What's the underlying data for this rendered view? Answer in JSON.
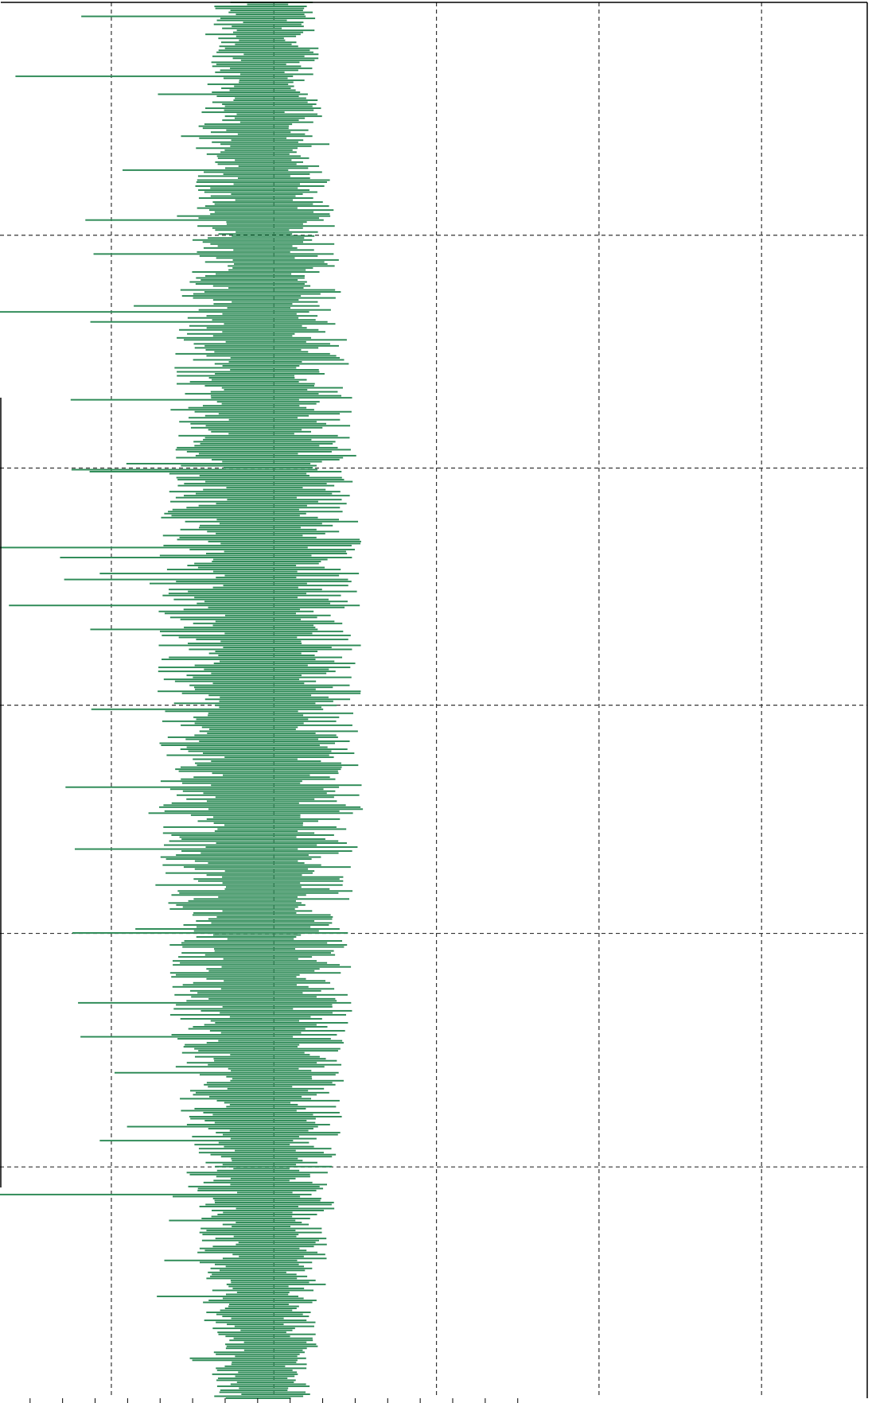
{
  "chart_data": {
    "type": "bar",
    "orientation": "horizontal",
    "grid": true,
    "grid_style": "dashed",
    "color": "#2e8b57",
    "xlim": [
      -3.37,
      7.3
    ],
    "ylim": [
      0,
      1
    ],
    "x_gridlines": [
      -2,
      0,
      2,
      4,
      6
    ],
    "y_gridlines": [
      0.1657,
      0.333,
      0.4965,
      0.6664,
      0.8332
    ],
    "x_ticks": [
      -3,
      -2.6,
      -2.2,
      -1.8,
      -1.4,
      -1.0,
      -0.6,
      -0.2,
      0.2,
      0.6,
      1.0,
      1.4,
      1.8,
      2.2,
      2.6,
      3.0
    ],
    "n_bars": 700,
    "base_mean": -0.08,
    "amplitude_ends": 0.45,
    "amplitude_middle": 0.95,
    "tail_min": -3.0,
    "outliers": [
      {
        "y": 0.9907,
        "x": -2.37
      },
      {
        "y": 0.9464,
        "x": -3.18
      },
      {
        "y": 0.8442,
        "x": -2.32
      },
      {
        "y": 0.7787,
        "x": -3.53
      },
      {
        "y": 0.665,
        "x": -2.49
      },
      {
        "y": 0.6099,
        "x": -5.37
      },
      {
        "y": 0.5682,
        "x": -3.26
      },
      {
        "y": 0.3938,
        "x": -2.45
      },
      {
        "y": 0.3337,
        "x": -2.48
      },
      {
        "y": 0.2827,
        "x": -2.41
      },
      {
        "y": 0.2587,
        "x": -2.38
      },
      {
        "y": 0.1458,
        "x": -5.39
      }
    ]
  }
}
